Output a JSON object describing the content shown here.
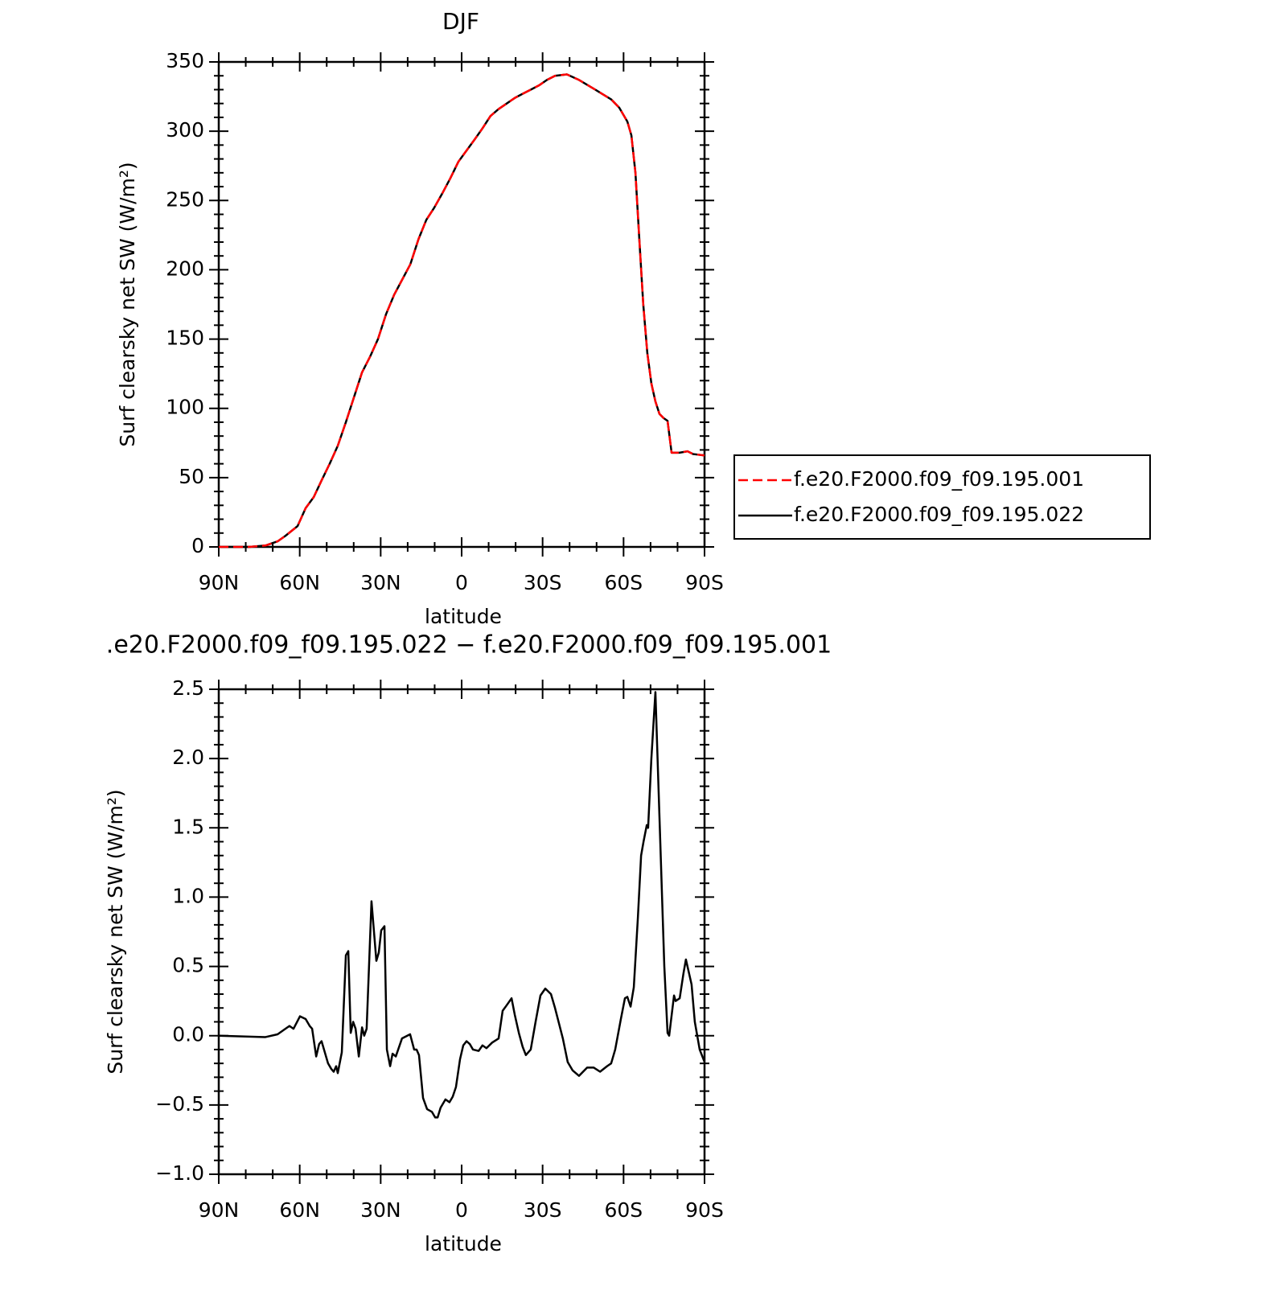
{
  "chart_data": [
    {
      "type": "line",
      "title": "DJF",
      "xlabel": "latitude",
      "ylabel": "Surf clearsky net SW (W/m²)",
      "x": [
        90,
        78.7,
        72.7,
        68.2,
        65.3,
        60.8,
        57.8,
        54.8,
        51.9,
        48.9,
        45.9,
        42.9,
        39.9,
        36.9,
        34,
        31,
        28,
        25,
        22,
        19,
        16,
        13.1,
        10.1,
        7.2,
        4.2,
        1.2,
        -1.8,
        -4.8,
        -7.7,
        -10.7,
        -13.7,
        -16.7,
        -19.7,
        -22.6,
        -25.6,
        -28.6,
        -31.6,
        -34.6,
        -39,
        -43.5,
        -49.5,
        -55.4,
        -58.4,
        -61.4,
        -62.9,
        -64.4,
        -65.9,
        -67.3,
        -68.8,
        -70.3,
        -71.8,
        -73.3,
        -74.8,
        -76.3,
        -77.8,
        -80.7,
        -83.7,
        -85.8,
        -90
      ],
      "series": [
        {
          "name": "f.e20.F2000.f09_f09.195.001",
          "color": "#ff0000",
          "dashed": true,
          "values": [
            0,
            0,
            1,
            4,
            8,
            15,
            28,
            36,
            48,
            60,
            73,
            90,
            108,
            126,
            137,
            150,
            168,
            182,
            193,
            204,
            222,
            236,
            245,
            255,
            266,
            278,
            286,
            294,
            302,
            311,
            316,
            320,
            324,
            327,
            330,
            333,
            337,
            340,
            341,
            337,
            330,
            323,
            317,
            307,
            297,
            270,
            220,
            175,
            140,
            118,
            105,
            96,
            93,
            91,
            68,
            68,
            69,
            67,
            66
          ]
        },
        {
          "name": "f.e20.F2000.f09_f09.195.022",
          "color": "#000000",
          "dashed": false,
          "values": [
            0,
            0,
            1,
            4,
            8,
            15,
            28,
            36,
            48,
            60,
            73,
            90,
            108,
            126,
            137,
            150,
            168,
            182,
            193,
            204,
            222,
            236,
            245,
            255,
            266,
            278,
            286,
            294,
            302,
            311,
            316,
            320,
            324,
            327,
            330,
            333,
            337,
            340,
            341,
            337,
            330,
            323,
            317,
            307,
            297,
            270,
            220,
            175,
            140,
            118,
            105,
            96,
            93,
            91,
            68,
            68,
            69,
            67,
            66
          ]
        }
      ],
      "xlim": [
        90,
        -90
      ],
      "xticks": [
        {
          "value": 90,
          "label": "90N"
        },
        {
          "value": 60,
          "label": "60N"
        },
        {
          "value": 30,
          "label": "30N"
        },
        0,
        {
          "value": -30,
          "label": "30S"
        },
        {
          "value": -60,
          "label": "60S"
        },
        {
          "value": -90,
          "label": "90S"
        }
      ],
      "ylim": [
        0,
        350
      ],
      "yticks": [
        0,
        50,
        100,
        150,
        200,
        250,
        300,
        350
      ],
      "legend": "outside-right"
    },
    {
      "type": "line",
      "title": ".e20.F2000.f09_f09.195.022 − f.e20.F2000.f09_f09.195.001",
      "xlabel": "latitude",
      "ylabel": "Surf clearsky net SW (W/m²)",
      "x": [
        90,
        72.7,
        68.2,
        65.3,
        63.8,
        62.3,
        59.9,
        57.8,
        56.3,
        55.4,
        53.9,
        52.8,
        51.9,
        49.5,
        48.3,
        47.4,
        46.5,
        45.9,
        44.4,
        42.9,
        42.0,
        41.1,
        40.2,
        39.3,
        38.1,
        36.9,
        36.1,
        35.2,
        33.4,
        31.6,
        30.7,
        29.8,
        28.6,
        27.7,
        26.5,
        25.6,
        24.4,
        22.1,
        19.1,
        17.6,
        16.7,
        15.8,
        14.3,
        12.8,
        11.0,
        9.8,
        8.9,
        7.8,
        6.0,
        4.5,
        3.3,
        2.1,
        0.6,
        -0.6,
        -1.8,
        -3.0,
        -4.2,
        -6.3,
        -7.7,
        -9.2,
        -11.3,
        -13.7,
        -15.2,
        -16.7,
        -18.5,
        -19.7,
        -21.2,
        -22.6,
        -23.8,
        -25.6,
        -27.4,
        -29.2,
        -31.0,
        -33.1,
        -34.6,
        -37.5,
        -39.3,
        -41.1,
        -43.5,
        -46.5,
        -48.9,
        -51.3,
        -53.9,
        -55.4,
        -56.9,
        -59.0,
        -60.5,
        -61.4,
        -62.6,
        -63.8,
        -65.3,
        -66.5,
        -67.4,
        -68.6,
        -69.1,
        -70.3,
        -71.8,
        -75.1,
        -76.3,
        -76.9,
        -78.7,
        -79.3,
        -80.8,
        -82.2,
        -83.1,
        -85.2,
        -86.4,
        -88.2,
        -90
      ],
      "series": [
        {
          "name": null,
          "color": "#000000",
          "dashed": false,
          "values": [
            0,
            -0.01,
            0.01,
            0.05,
            0.07,
            0.05,
            0.14,
            0.12,
            0.07,
            0.05,
            -0.15,
            -0.06,
            -0.04,
            -0.2,
            -0.24,
            -0.26,
            -0.22,
            -0.27,
            -0.12,
            0.58,
            0.61,
            0.02,
            0.1,
            0.05,
            -0.15,
            0.06,
            0,
            0.05,
            0.97,
            0.54,
            0.6,
            0.76,
            0.79,
            -0.1,
            -0.22,
            -0.13,
            -0.15,
            -0.02,
            0.01,
            -0.1,
            -0.1,
            -0.14,
            -0.45,
            -0.53,
            -0.55,
            -0.59,
            -0.59,
            -0.52,
            -0.46,
            -0.48,
            -0.44,
            -0.37,
            -0.17,
            -0.07,
            -0.04,
            -0.06,
            -0.1,
            -0.11,
            -0.07,
            -0.09,
            -0.05,
            -0.02,
            0.18,
            0.22,
            0.27,
            0.15,
            0.02,
            -0.08,
            -0.14,
            -0.1,
            0.1,
            0.29,
            0.34,
            0.3,
            0.2,
            -0.02,
            -0.19,
            -0.25,
            -0.29,
            -0.23,
            -0.23,
            -0.26,
            -0.22,
            -0.2,
            -0.1,
            0.12,
            0.27,
            0.28,
            0.21,
            0.35,
            0.85,
            1.3,
            1.4,
            1.52,
            1.5,
            2.0,
            2.48,
            0.5,
            0.02,
            0,
            0.29,
            0.25,
            0.27,
            0.45,
            0.55,
            0.37,
            0.1,
            -0.1,
            -0.19
          ]
        }
      ],
      "xlim": [
        90,
        -90
      ],
      "xticks": [
        {
          "value": 90,
          "label": "90N"
        },
        {
          "value": 60,
          "label": "60N"
        },
        {
          "value": 30,
          "label": "30N"
        },
        0,
        {
          "value": -30,
          "label": "30S"
        },
        {
          "value": -60,
          "label": "60S"
        },
        {
          "value": -90,
          "label": "90S"
        }
      ],
      "ylim": [
        -1.0,
        2.5
      ],
      "yticks": [
        {
          "value": -1.0,
          "label": "−1.0"
        },
        {
          "value": -0.5,
          "label": "−0.5"
        },
        {
          "value": 0,
          "label": "0.0"
        },
        0.5,
        {
          "value": 1.0,
          "label": "1.0"
        },
        1.5,
        {
          "value": 2.0,
          "label": "2.0"
        },
        2.5
      ]
    }
  ]
}
